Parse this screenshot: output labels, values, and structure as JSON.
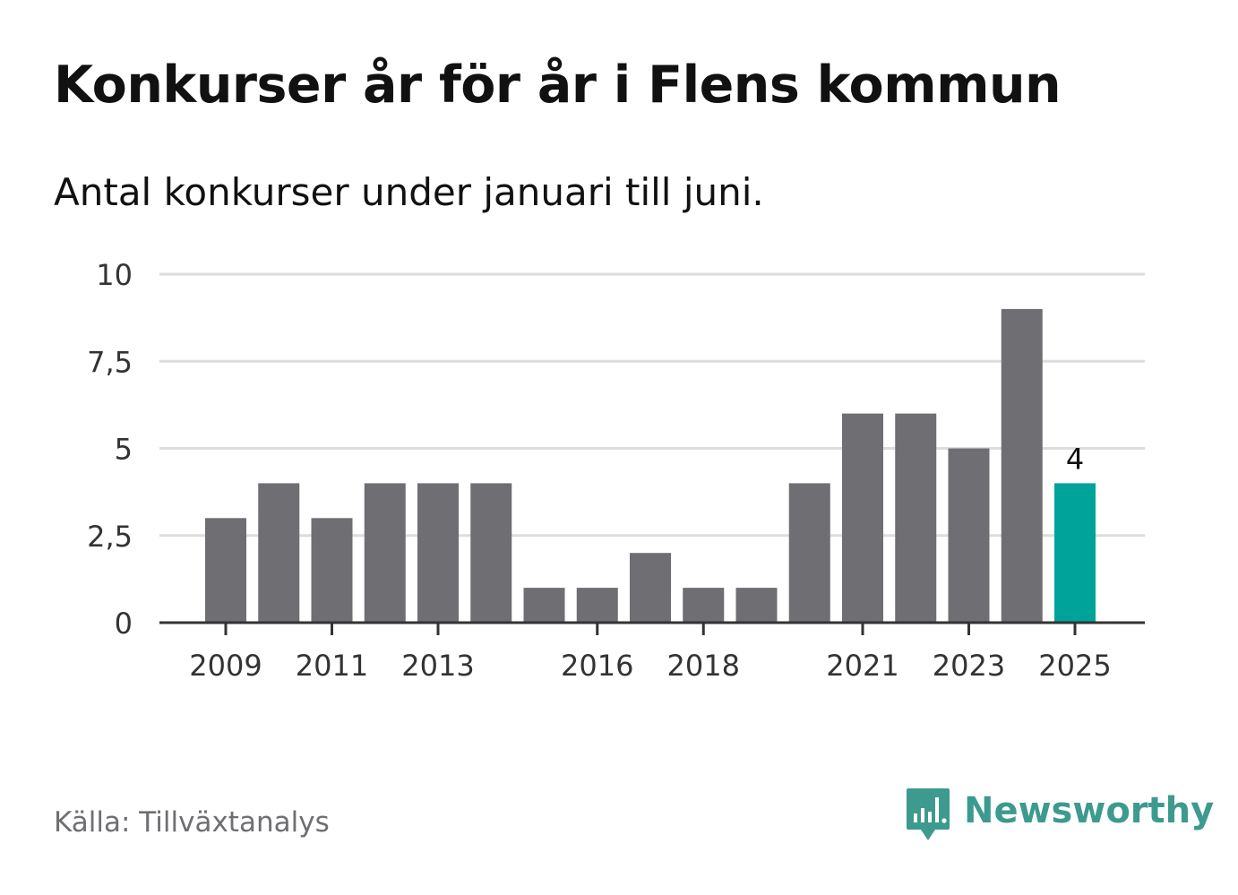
{
  "title": "Konkurser år för år i Flens kommun",
  "subtitle": "Antal konkurser under januari till juni.",
  "source": "Källa: Tillväxtanalys",
  "brand": {
    "name": "Newsworthy",
    "icon": "newsworthy-logo-icon"
  },
  "colors": {
    "bar": "#6f6e73",
    "highlight": "#00a39a",
    "grid": "#dddddd",
    "axis": "#333333",
    "brand": "#3d9a8e"
  },
  "chart_data": {
    "type": "bar",
    "categories": [
      "2009",
      "2010",
      "2011",
      "2012",
      "2013",
      "2014",
      "2015",
      "2016",
      "2017",
      "2018",
      "2019",
      "2020",
      "2021",
      "2022",
      "2023",
      "2024",
      "2025"
    ],
    "values": [
      3,
      4,
      3,
      4,
      4,
      4,
      1,
      1,
      2,
      1,
      1,
      4,
      6,
      6,
      5,
      9,
      4
    ],
    "x_tick_labels": [
      "2009",
      "2011",
      "2013",
      "2016",
      "2018",
      "2021",
      "2023",
      "2025"
    ],
    "y_ticks": [
      {
        "value": 0,
        "label": "0"
      },
      {
        "value": 2.5,
        "label": "2,5"
      },
      {
        "value": 5,
        "label": "5"
      },
      {
        "value": 7.5,
        "label": "7,5"
      },
      {
        "value": 10,
        "label": "10"
      }
    ],
    "ylim": [
      0,
      10
    ],
    "highlight_index": 16,
    "data_labels": [
      {
        "index": 16,
        "text": "4"
      }
    ],
    "grid": true,
    "legend": "none"
  }
}
